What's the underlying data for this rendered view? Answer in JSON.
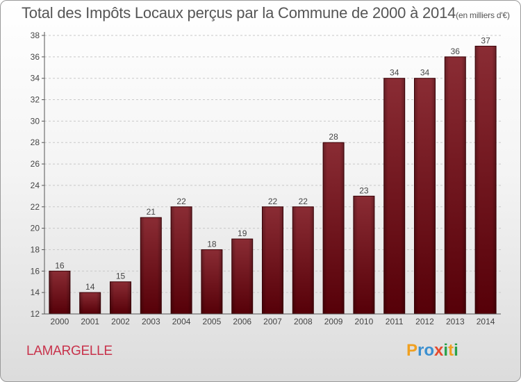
{
  "header": {
    "title": "Total des Impôts Locaux perçus par la Commune de 2000 à 2014",
    "unit": "(en milliers d'€)"
  },
  "commune": "LAMARGELLE",
  "brand": {
    "logo_text": "Proxiti"
  },
  "colors": {
    "bar": "#7a1e26",
    "bar_dark": "#5a0a10",
    "commune_text": "#c8324b"
  },
  "chart_data": {
    "type": "bar",
    "title": "Total des Impôts Locaux perçus par la Commune de 2000 à 2014",
    "unit": "(en milliers d'€)",
    "xlabel": "",
    "ylabel": "",
    "categories": [
      "2000",
      "2001",
      "2002",
      "2003",
      "2004",
      "2005",
      "2006",
      "2007",
      "2008",
      "2009",
      "2010",
      "2011",
      "2012",
      "2013",
      "2014"
    ],
    "values": [
      16,
      14,
      15,
      21,
      22,
      18,
      19,
      22,
      22,
      28,
      23,
      34,
      34,
      36,
      37
    ],
    "ylim": [
      12,
      38
    ],
    "yticks": [
      12,
      14,
      16,
      18,
      20,
      22,
      24,
      26,
      28,
      30,
      32,
      34,
      36,
      38
    ],
    "grid": true
  }
}
